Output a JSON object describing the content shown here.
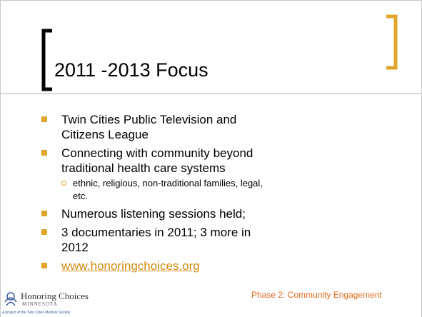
{
  "header": {
    "title": "2011 -2013 Focus"
  },
  "bullets": [
    {
      "text": "Twin Cities Public Television and Citizens League"
    },
    {
      "text": "Connecting with community beyond traditional health care systems",
      "subitems": [
        "ethnic, religious, non-traditional families, legal, etc."
      ]
    },
    {
      "text": "Numerous listening sessions held;"
    },
    {
      "text": "3 documentaries in 2011; 3 more in 2012"
    },
    {
      "text": "www.honoringchoices.org"
    }
  ],
  "footer": {
    "logo_name": "Honoring Choices",
    "logo_state": "MINNESOTA",
    "logo_tagline": "A project of the Twin Cities Medical Society",
    "phase": "Phase 2: Community Engagement"
  }
}
